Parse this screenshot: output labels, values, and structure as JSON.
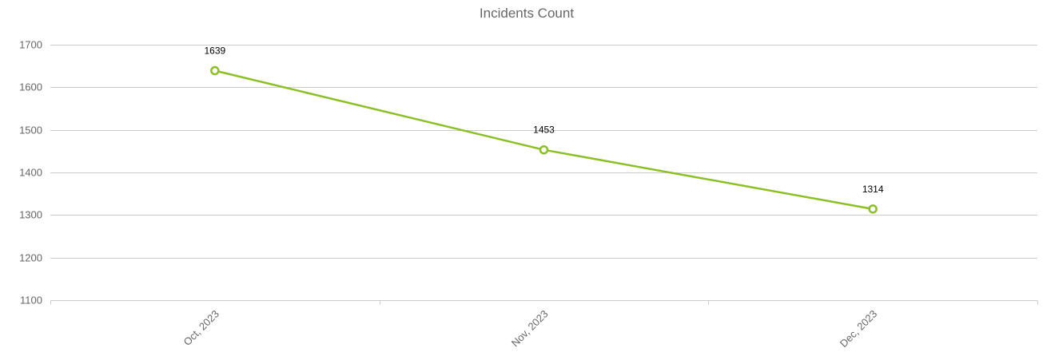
{
  "chart_data": {
    "type": "line",
    "title": "Incidents Count",
    "xlabel": "",
    "ylabel": "",
    "categories": [
      "Oct, 2023",
      "Nov, 2023",
      "Dec, 2023"
    ],
    "series": [
      {
        "values": [
          1639,
          1453,
          1314
        ]
      }
    ],
    "data_labels": [
      "1639",
      "1453",
      "1314"
    ],
    "y_ticks": [
      "1700",
      "1600",
      "1500",
      "1400",
      "1300",
      "1200",
      "1100"
    ],
    "ylim": [
      1100,
      1700
    ],
    "grid": true,
    "legend": "none",
    "colors": {
      "series": "#8cbf26",
      "grid": "#cccccc",
      "text": "#666666",
      "data_label": "#000000"
    }
  }
}
